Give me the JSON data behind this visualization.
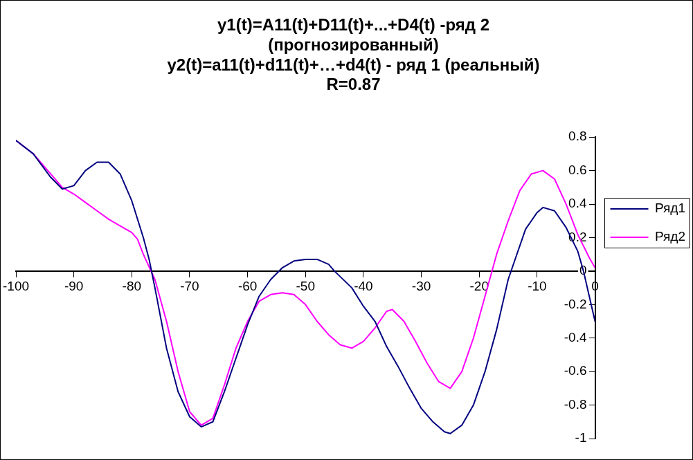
{
  "chart_data": {
    "type": "line",
    "title": "y1(t)=A11(t)+D11(t)+...+D4(t) -ряд 2\n(прогнозированный)\ny2(t)=a11(t)+d11(t)+…+d4(t) - ряд 1 (реальный)\nR=0.87",
    "xlim": [
      -100,
      0
    ],
    "xticks": [
      -100,
      -90,
      -80,
      -70,
      -60,
      -50,
      -40,
      -30,
      -20,
      -10,
      0
    ],
    "ylim": [
      -1,
      0.8
    ],
    "yticks": [
      -1,
      -0.8,
      -0.6,
      -0.4,
      -0.2,
      0,
      0.2,
      0.4,
      0.6,
      0.8
    ],
    "grid": false,
    "legend": "right",
    "marker": "none",
    "line_style": "solid",
    "series": [
      {
        "name": "Ряд1",
        "color": "#000080",
        "x": [
          -100,
          -97,
          -94,
          -92,
          -90,
          -88,
          -86,
          -84,
          -82,
          -80,
          -78,
          -77,
          -76,
          -74,
          -72,
          -70,
          -68,
          -66,
          -64,
          -62,
          -60,
          -58,
          -56,
          -54,
          -52,
          -50,
          -48,
          -46,
          -45,
          -42,
          -40,
          -38,
          -36,
          -34,
          -32,
          -30,
          -28,
          -26,
          -25,
          -23,
          -21,
          -19,
          -17,
          -15,
          -14,
          -12,
          -10,
          -9,
          -7,
          -5,
          -3,
          -2,
          -1,
          0
        ],
        "values": [
          0.78,
          0.7,
          0.56,
          0.49,
          0.51,
          0.6,
          0.65,
          0.65,
          0.58,
          0.42,
          0.2,
          0.07,
          -0.1,
          -0.46,
          -0.72,
          -0.87,
          -0.93,
          -0.9,
          -0.72,
          -0.52,
          -0.32,
          -0.15,
          -0.05,
          0.02,
          0.06,
          0.07,
          0.07,
          0.04,
          0,
          -0.1,
          -0.21,
          -0.3,
          -0.45,
          -0.57,
          -0.7,
          -0.82,
          -0.9,
          -0.96,
          -0.97,
          -0.92,
          -0.8,
          -0.6,
          -0.35,
          -0.05,
          0.05,
          0.25,
          0.35,
          0.38,
          0.36,
          0.26,
          0.12,
          0,
          -0.15,
          -0.3
        ]
      },
      {
        "name": "Ряд2",
        "color": "#ff00ff",
        "x": [
          -100,
          -97,
          -94,
          -92,
          -90,
          -88,
          -86,
          -84,
          -82,
          -80,
          -79,
          -78,
          -76,
          -74,
          -72,
          -70,
          -68,
          -66,
          -64,
          -62,
          -60,
          -58,
          -56,
          -54,
          -52,
          -50,
          -48,
          -46,
          -44,
          -42,
          -40,
          -38,
          -36,
          -35,
          -33,
          -31,
          -29,
          -27,
          -25,
          -23,
          -21,
          -19,
          -17,
          -15,
          -13,
          -11,
          -9,
          -7,
          -5,
          -3,
          -1,
          0
        ],
        "values": [
          0.78,
          0.7,
          0.58,
          0.5,
          0.46,
          0.41,
          0.36,
          0.31,
          0.27,
          0.23,
          0.19,
          0.1,
          -0.05,
          -0.3,
          -0.6,
          -0.84,
          -0.92,
          -0.88,
          -0.68,
          -0.46,
          -0.3,
          -0.18,
          -0.14,
          -0.13,
          -0.14,
          -0.2,
          -0.3,
          -0.38,
          -0.44,
          -0.46,
          -0.42,
          -0.34,
          -0.24,
          -0.23,
          -0.3,
          -0.42,
          -0.55,
          -0.66,
          -0.7,
          -0.6,
          -0.4,
          -0.15,
          0.1,
          0.3,
          0.48,
          0.58,
          0.6,
          0.55,
          0.4,
          0.22,
          0.08,
          0.02
        ]
      }
    ]
  }
}
